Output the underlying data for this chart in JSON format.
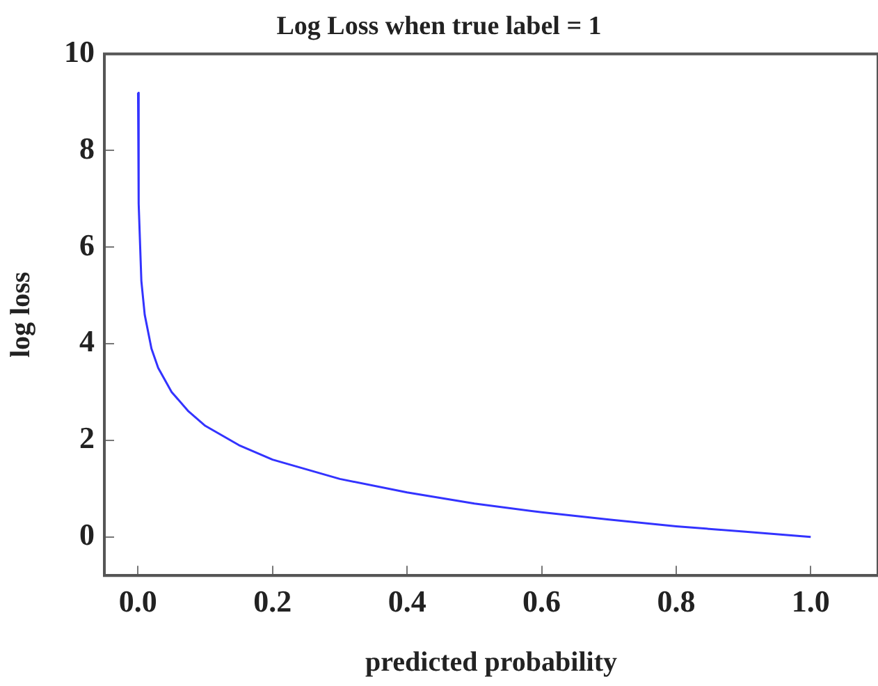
{
  "chart_data": {
    "type": "line",
    "title": "Log Loss when true label = 1",
    "xlabel": "predicted probability",
    "ylabel": "log loss",
    "x": [
      0.0001,
      0.001,
      0.005,
      0.01,
      0.02,
      0.03,
      0.05,
      0.075,
      0.1,
      0.15,
      0.2,
      0.3,
      0.4,
      0.5,
      0.6,
      0.7,
      0.8,
      0.9,
      1.0
    ],
    "series": [
      {
        "color": "#3333ff",
        "values": [
          9.2,
          6.9,
          5.3,
          4.6,
          3.9,
          3.5,
          3.0,
          2.6,
          2.3,
          1.9,
          1.6,
          1.2,
          0.92,
          0.69,
          0.51,
          0.36,
          0.22,
          0.11,
          0
        ]
      }
    ],
    "xlim": [
      -0.05,
      1.1
    ],
    "xticks": [
      {
        "value": 0,
        "label": "0.0"
      },
      {
        "value": 0.2,
        "label": "0.2"
      },
      {
        "value": 0.4,
        "label": "0.4"
      },
      {
        "value": 0.6,
        "label": "0.6"
      },
      {
        "value": 0.8,
        "label": "0.8"
      },
      {
        "value": 1,
        "label": "1.0"
      }
    ],
    "ylim": [
      -0.8,
      10
    ],
    "yticks": [
      0,
      2,
      4,
      6,
      8,
      10
    ],
    "marker": "none",
    "line_style": "solid",
    "legend": false
  }
}
